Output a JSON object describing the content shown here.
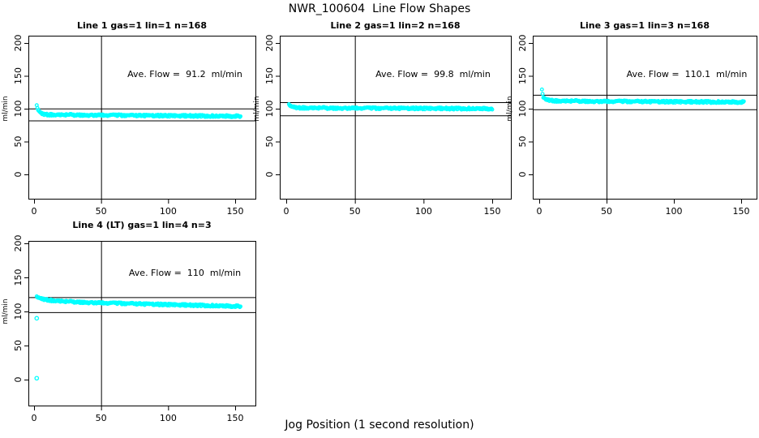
{
  "figure": {
    "title": "NWR_100604  Line Flow Shapes",
    "x_axis_label": "Jog Position (1 second resolution)"
  },
  "colors": {
    "points": "#00FFFF",
    "axis": "#000000",
    "background": "#FFFFFF"
  },
  "chart_data": [
    {
      "type": "scatter",
      "title": "Line 1 gas=1 lin=1 n=168",
      "annotation": "Ave. Flow =  91.2  ml/min",
      "ave_flow_ml_min": 91.2,
      "n": 168,
      "ylabel": "ml/min",
      "xticks": [
        0,
        50,
        100,
        150
      ],
      "yticks": [
        0,
        50,
        100,
        150,
        200
      ],
      "ylim": [
        0,
        200
      ],
      "vline_x": 50,
      "ref_lines_y": [
        100.3,
        82.1
      ],
      "x_range": [
        2,
        154
      ],
      "profile": [
        [
          2,
          104
        ],
        [
          3,
          98
        ],
        [
          4,
          95
        ],
        [
          6,
          92
        ],
        [
          10,
          91
        ],
        [
          30,
          90.5
        ],
        [
          80,
          89.5
        ],
        [
          154,
          88.5
        ]
      ],
      "outliers": []
    },
    {
      "type": "scatter",
      "title": "Line 2 gas=1 lin=2 n=168",
      "annotation": "Ave. Flow =  99.8  ml/min",
      "ave_flow_ml_min": 99.8,
      "n": 168,
      "ylabel": "ml/min",
      "xticks": [
        0,
        50,
        100,
        150
      ],
      "yticks": [
        0,
        50,
        100,
        150,
        200
      ],
      "ylim": [
        0,
        200
      ],
      "vline_x": 50,
      "ref_lines_y": [
        109.8,
        89.8
      ],
      "x_range": [
        2,
        150
      ],
      "profile": [
        [
          2,
          105.5
        ],
        [
          4,
          102.5
        ],
        [
          8,
          101.5
        ],
        [
          30,
          101
        ],
        [
          80,
          100.5
        ],
        [
          150,
          100
        ]
      ],
      "outliers": []
    },
    {
      "type": "scatter",
      "title": "Line 3 gas=1 lin=3 n=168",
      "annotation": "Ave. Flow =  110.1  ml/min",
      "ave_flow_ml_min": 110.1,
      "n": 168,
      "ylabel": "ml/min",
      "xticks": [
        0,
        50,
        100,
        150
      ],
      "yticks": [
        0,
        50,
        100,
        150,
        200
      ],
      "ylim": [
        0,
        200
      ],
      "vline_x": 50,
      "ref_lines_y": [
        121.1,
        99.1
      ],
      "x_range": [
        2,
        152
      ],
      "profile": [
        [
          2,
          128
        ],
        [
          3,
          117
        ],
        [
          5,
          113.5
        ],
        [
          12,
          112
        ],
        [
          50,
          111
        ],
        [
          100,
          110.5
        ],
        [
          152,
          110
        ]
      ],
      "outliers": []
    },
    {
      "type": "scatter",
      "title": "Line 4 (LT) gas=1 lin=4 n=3",
      "annotation": "Ave. Flow =  110  ml/min",
      "ave_flow_ml_min": 110,
      "n": 3,
      "ylabel": "ml/min",
      "xticks": [
        0,
        50,
        100,
        150
      ],
      "yticks": [
        0,
        50,
        100,
        150,
        200
      ],
      "ylim": [
        0,
        200
      ],
      "vline_x": 50,
      "ref_lines_y": [
        121,
        99
      ],
      "x_range": [
        2,
        154
      ],
      "profile": [
        [
          2,
          121
        ],
        [
          5,
          118.5
        ],
        [
          12,
          116.5
        ],
        [
          25,
          114.5
        ],
        [
          50,
          112.5
        ],
        [
          100,
          110
        ],
        [
          154,
          107.5
        ]
      ],
      "outliers": [
        [
          2,
          90
        ],
        [
          2,
          2
        ]
      ]
    }
  ]
}
